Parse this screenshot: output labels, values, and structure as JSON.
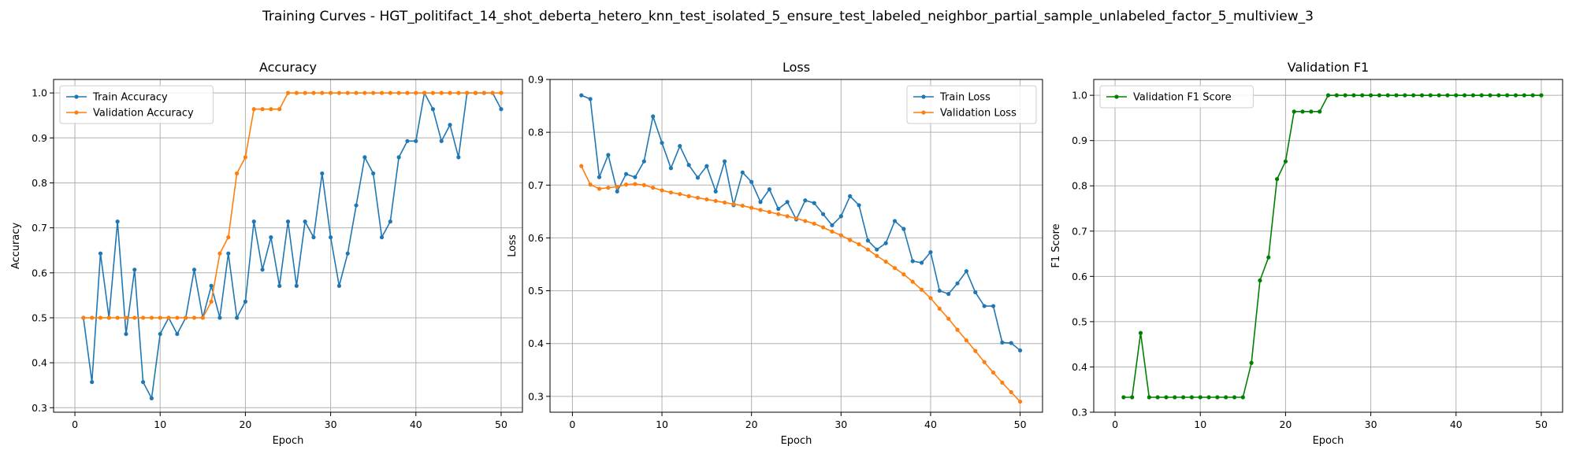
{
  "figure": {
    "title": "Training Curves - HGT_politifact_14_shot_deberta_hetero_knn_test_isolated_5_ensure_test_labeled_neighbor_partial_sample_unlabeled_factor_5_multiview_3"
  },
  "colors": {
    "blue": "#1f77b4",
    "orange": "#ff7f0e",
    "green": "#008000"
  },
  "chart_data": [
    {
      "type": "line",
      "title": "Accuracy",
      "xlabel": "Epoch",
      "ylabel": "Accuracy",
      "xlim": [
        -2.5,
        52.5
      ],
      "ylim": [
        0.29,
        1.03
      ],
      "xticks": [
        0,
        10,
        20,
        30,
        40,
        50
      ],
      "yticks": [
        0.3,
        0.4,
        0.5,
        0.6,
        0.7,
        0.8,
        0.9,
        1.0
      ],
      "ytick_labels": [
        "0.3",
        "0.4",
        "0.5",
        "0.6",
        "0.7",
        "0.8",
        "0.9",
        "1.0"
      ],
      "grid": true,
      "legend": "top-left",
      "x": [
        1,
        2,
        3,
        4,
        5,
        6,
        7,
        8,
        9,
        10,
        11,
        12,
        13,
        14,
        15,
        16,
        17,
        18,
        19,
        20,
        21,
        22,
        23,
        24,
        25,
        26,
        27,
        28,
        29,
        30,
        31,
        32,
        33,
        34,
        35,
        36,
        37,
        38,
        39,
        40,
        41,
        42,
        43,
        44,
        45,
        46,
        47,
        48,
        49,
        50
      ],
      "series": [
        {
          "name": "Train Accuracy",
          "color": "#1f77b4",
          "values": [
            0.5,
            0.357,
            0.643,
            0.5,
            0.714,
            0.464,
            0.607,
            0.357,
            0.321,
            0.464,
            0.5,
            0.464,
            0.5,
            0.607,
            0.5,
            0.571,
            0.5,
            0.643,
            0.5,
            0.536,
            0.714,
            0.607,
            0.679,
            0.571,
            0.714,
            0.571,
            0.714,
            0.679,
            0.821,
            0.679,
            0.571,
            0.643,
            0.75,
            0.857,
            0.821,
            0.679,
            0.714,
            0.857,
            0.893,
            0.893,
            1.0,
            0.964,
            0.893,
            0.929,
            0.857,
            1.0,
            1.0,
            1.0,
            1.0,
            0.964
          ]
        },
        {
          "name": "Validation Accuracy",
          "color": "#ff7f0e",
          "values": [
            0.5,
            0.5,
            0.5,
            0.5,
            0.5,
            0.5,
            0.5,
            0.5,
            0.5,
            0.5,
            0.5,
            0.5,
            0.5,
            0.5,
            0.5,
            0.536,
            0.643,
            0.679,
            0.821,
            0.857,
            0.964,
            0.964,
            0.964,
            0.964,
            1.0,
            1.0,
            1.0,
            1.0,
            1.0,
            1.0,
            1.0,
            1.0,
            1.0,
            1.0,
            1.0,
            1.0,
            1.0,
            1.0,
            1.0,
            1.0,
            1.0,
            1.0,
            1.0,
            1.0,
            1.0,
            1.0,
            1.0,
            1.0,
            1.0,
            1.0
          ]
        }
      ]
    },
    {
      "type": "line",
      "title": "Loss",
      "xlabel": "Epoch",
      "ylabel": "Loss",
      "xlim": [
        -2.5,
        52.5
      ],
      "ylim": [
        0.27,
        0.9
      ],
      "xticks": [
        0,
        10,
        20,
        30,
        40,
        50
      ],
      "yticks": [
        0.3,
        0.4,
        0.5,
        0.6,
        0.7,
        0.8,
        0.9
      ],
      "ytick_labels": [
        "0.3",
        "0.4",
        "0.5",
        "0.6",
        "0.7",
        "0.8",
        "0.9"
      ],
      "grid": true,
      "legend": "top-right",
      "x": [
        1,
        2,
        3,
        4,
        5,
        6,
        7,
        8,
        9,
        10,
        11,
        12,
        13,
        14,
        15,
        16,
        17,
        18,
        19,
        20,
        21,
        22,
        23,
        24,
        25,
        26,
        27,
        28,
        29,
        30,
        31,
        32,
        33,
        34,
        35,
        36,
        37,
        38,
        39,
        40,
        41,
        42,
        43,
        44,
        45,
        46,
        47,
        48,
        49,
        50
      ],
      "series": [
        {
          "name": "Train Loss",
          "color": "#1f77b4",
          "values": [
            0.87,
            0.863,
            0.715,
            0.757,
            0.688,
            0.721,
            0.715,
            0.745,
            0.83,
            0.78,
            0.732,
            0.774,
            0.738,
            0.714,
            0.736,
            0.688,
            0.745,
            0.662,
            0.724,
            0.706,
            0.668,
            0.692,
            0.655,
            0.668,
            0.635,
            0.671,
            0.666,
            0.645,
            0.624,
            0.641,
            0.679,
            0.662,
            0.595,
            0.578,
            0.59,
            0.632,
            0.617,
            0.556,
            0.553,
            0.573,
            0.5,
            0.494,
            0.514,
            0.537,
            0.497,
            0.471,
            0.471,
            0.402,
            0.401,
            0.387
          ]
        },
        {
          "name": "Validation Loss",
          "color": "#ff7f0e",
          "values": [
            0.736,
            0.701,
            0.693,
            0.695,
            0.697,
            0.701,
            0.702,
            0.7,
            0.695,
            0.69,
            0.686,
            0.683,
            0.679,
            0.676,
            0.673,
            0.67,
            0.667,
            0.664,
            0.661,
            0.657,
            0.653,
            0.649,
            0.645,
            0.641,
            0.637,
            0.632,
            0.627,
            0.62,
            0.612,
            0.605,
            0.596,
            0.588,
            0.578,
            0.566,
            0.555,
            0.543,
            0.531,
            0.517,
            0.502,
            0.486,
            0.466,
            0.447,
            0.426,
            0.406,
            0.386,
            0.365,
            0.345,
            0.326,
            0.308,
            0.29
          ]
        }
      ]
    },
    {
      "type": "line",
      "title": "Validation F1",
      "xlabel": "Epoch",
      "ylabel": "F1 Score",
      "xlim": [
        -2.5,
        52.5
      ],
      "ylim": [
        0.3,
        1.035
      ],
      "xticks": [
        0,
        10,
        20,
        30,
        40,
        50
      ],
      "yticks": [
        0.3,
        0.4,
        0.5,
        0.6,
        0.7,
        0.8,
        0.9,
        1.0
      ],
      "ytick_labels": [
        "0.3",
        "0.4",
        "0.5",
        "0.6",
        "0.7",
        "0.8",
        "0.9",
        "1.0"
      ],
      "grid": true,
      "legend": "top-left",
      "x": [
        1,
        2,
        3,
        4,
        5,
        6,
        7,
        8,
        9,
        10,
        11,
        12,
        13,
        14,
        15,
        16,
        17,
        18,
        19,
        20,
        21,
        22,
        23,
        24,
        25,
        26,
        27,
        28,
        29,
        30,
        31,
        32,
        33,
        34,
        35,
        36,
        37,
        38,
        39,
        40,
        41,
        42,
        43,
        44,
        45,
        46,
        47,
        48,
        49,
        50
      ],
      "series": [
        {
          "name": "Validation F1 Score",
          "color": "#008000",
          "values": [
            0.333,
            0.333,
            0.475,
            0.333,
            0.333,
            0.333,
            0.333,
            0.333,
            0.333,
            0.333,
            0.333,
            0.333,
            0.333,
            0.333,
            0.333,
            0.409,
            0.591,
            0.642,
            0.815,
            0.854,
            0.964,
            0.964,
            0.964,
            0.964,
            1.0,
            1.0,
            1.0,
            1.0,
            1.0,
            1.0,
            1.0,
            1.0,
            1.0,
            1.0,
            1.0,
            1.0,
            1.0,
            1.0,
            1.0,
            1.0,
            1.0,
            1.0,
            1.0,
            1.0,
            1.0,
            1.0,
            1.0,
            1.0,
            1.0,
            1.0
          ]
        }
      ]
    }
  ]
}
